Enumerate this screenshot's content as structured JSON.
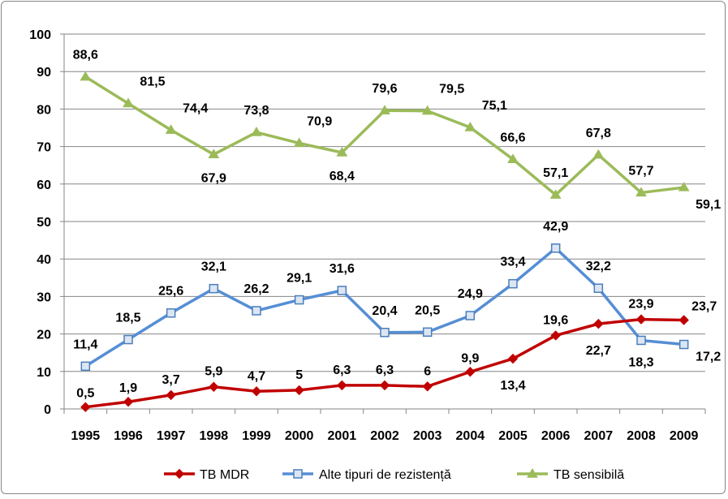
{
  "chart_data": {
    "type": "line",
    "title": "",
    "xlabel": "",
    "ylabel": "",
    "categories": [
      "1995",
      "1996",
      "1997",
      "1998",
      "1999",
      "2000",
      "2001",
      "2002",
      "2003",
      "2004",
      "2005",
      "2006",
      "2007",
      "2008",
      "2009"
    ],
    "ylim": [
      0,
      100
    ],
    "yticks": [
      0,
      10,
      20,
      30,
      40,
      50,
      60,
      70,
      80,
      90,
      100
    ],
    "grid": true,
    "legend_position": "bottom",
    "series": [
      {
        "name": "TB MDR",
        "color": "#C00000",
        "marker": "diamond",
        "values": [
          0.5,
          1.9,
          3.7,
          5.9,
          4.7,
          5,
          6.3,
          6.3,
          6,
          9.9,
          13.4,
          19.6,
          22.7,
          23.9,
          23.7
        ],
        "labels": [
          "0,5",
          "1,9",
          "3,7",
          "5,9",
          "4,7",
          "5",
          "6,3",
          "6,3",
          "6",
          "9,9",
          "13,4",
          "19,6",
          "22,7",
          "23,9",
          "23,7"
        ]
      },
      {
        "name": "Alte tipuri de rezistență",
        "color": "#558ED5",
        "marker": "square",
        "values": [
          11.4,
          18.5,
          25.6,
          32.1,
          26.2,
          29.1,
          31.6,
          20.4,
          20.5,
          24.9,
          33.4,
          42.9,
          32.2,
          18.3,
          17.2
        ],
        "labels": [
          "11,4",
          "18,5",
          "25,6",
          "32,1",
          "26,2",
          "29,1",
          "31,6",
          "20,4",
          "20,5",
          "24,9",
          "33,4",
          "42,9",
          "32,2",
          "18,3",
          "17,2"
        ]
      },
      {
        "name": "TB sensibilă",
        "color": "#9BBB59",
        "marker": "triangle",
        "values": [
          88.6,
          81.5,
          74.4,
          67.9,
          73.8,
          70.9,
          68.4,
          79.6,
          79.5,
          75.1,
          66.6,
          57.1,
          67.8,
          57.7,
          59.1
        ],
        "labels": [
          "88,6",
          "81,5",
          "74,4",
          "67,9",
          "73,8",
          "70,9",
          "68,4",
          "79,6",
          "79,5",
          "75,1",
          "66,6",
          "57,1",
          "67,8",
          "57,7",
          "59,1"
        ]
      }
    ]
  }
}
